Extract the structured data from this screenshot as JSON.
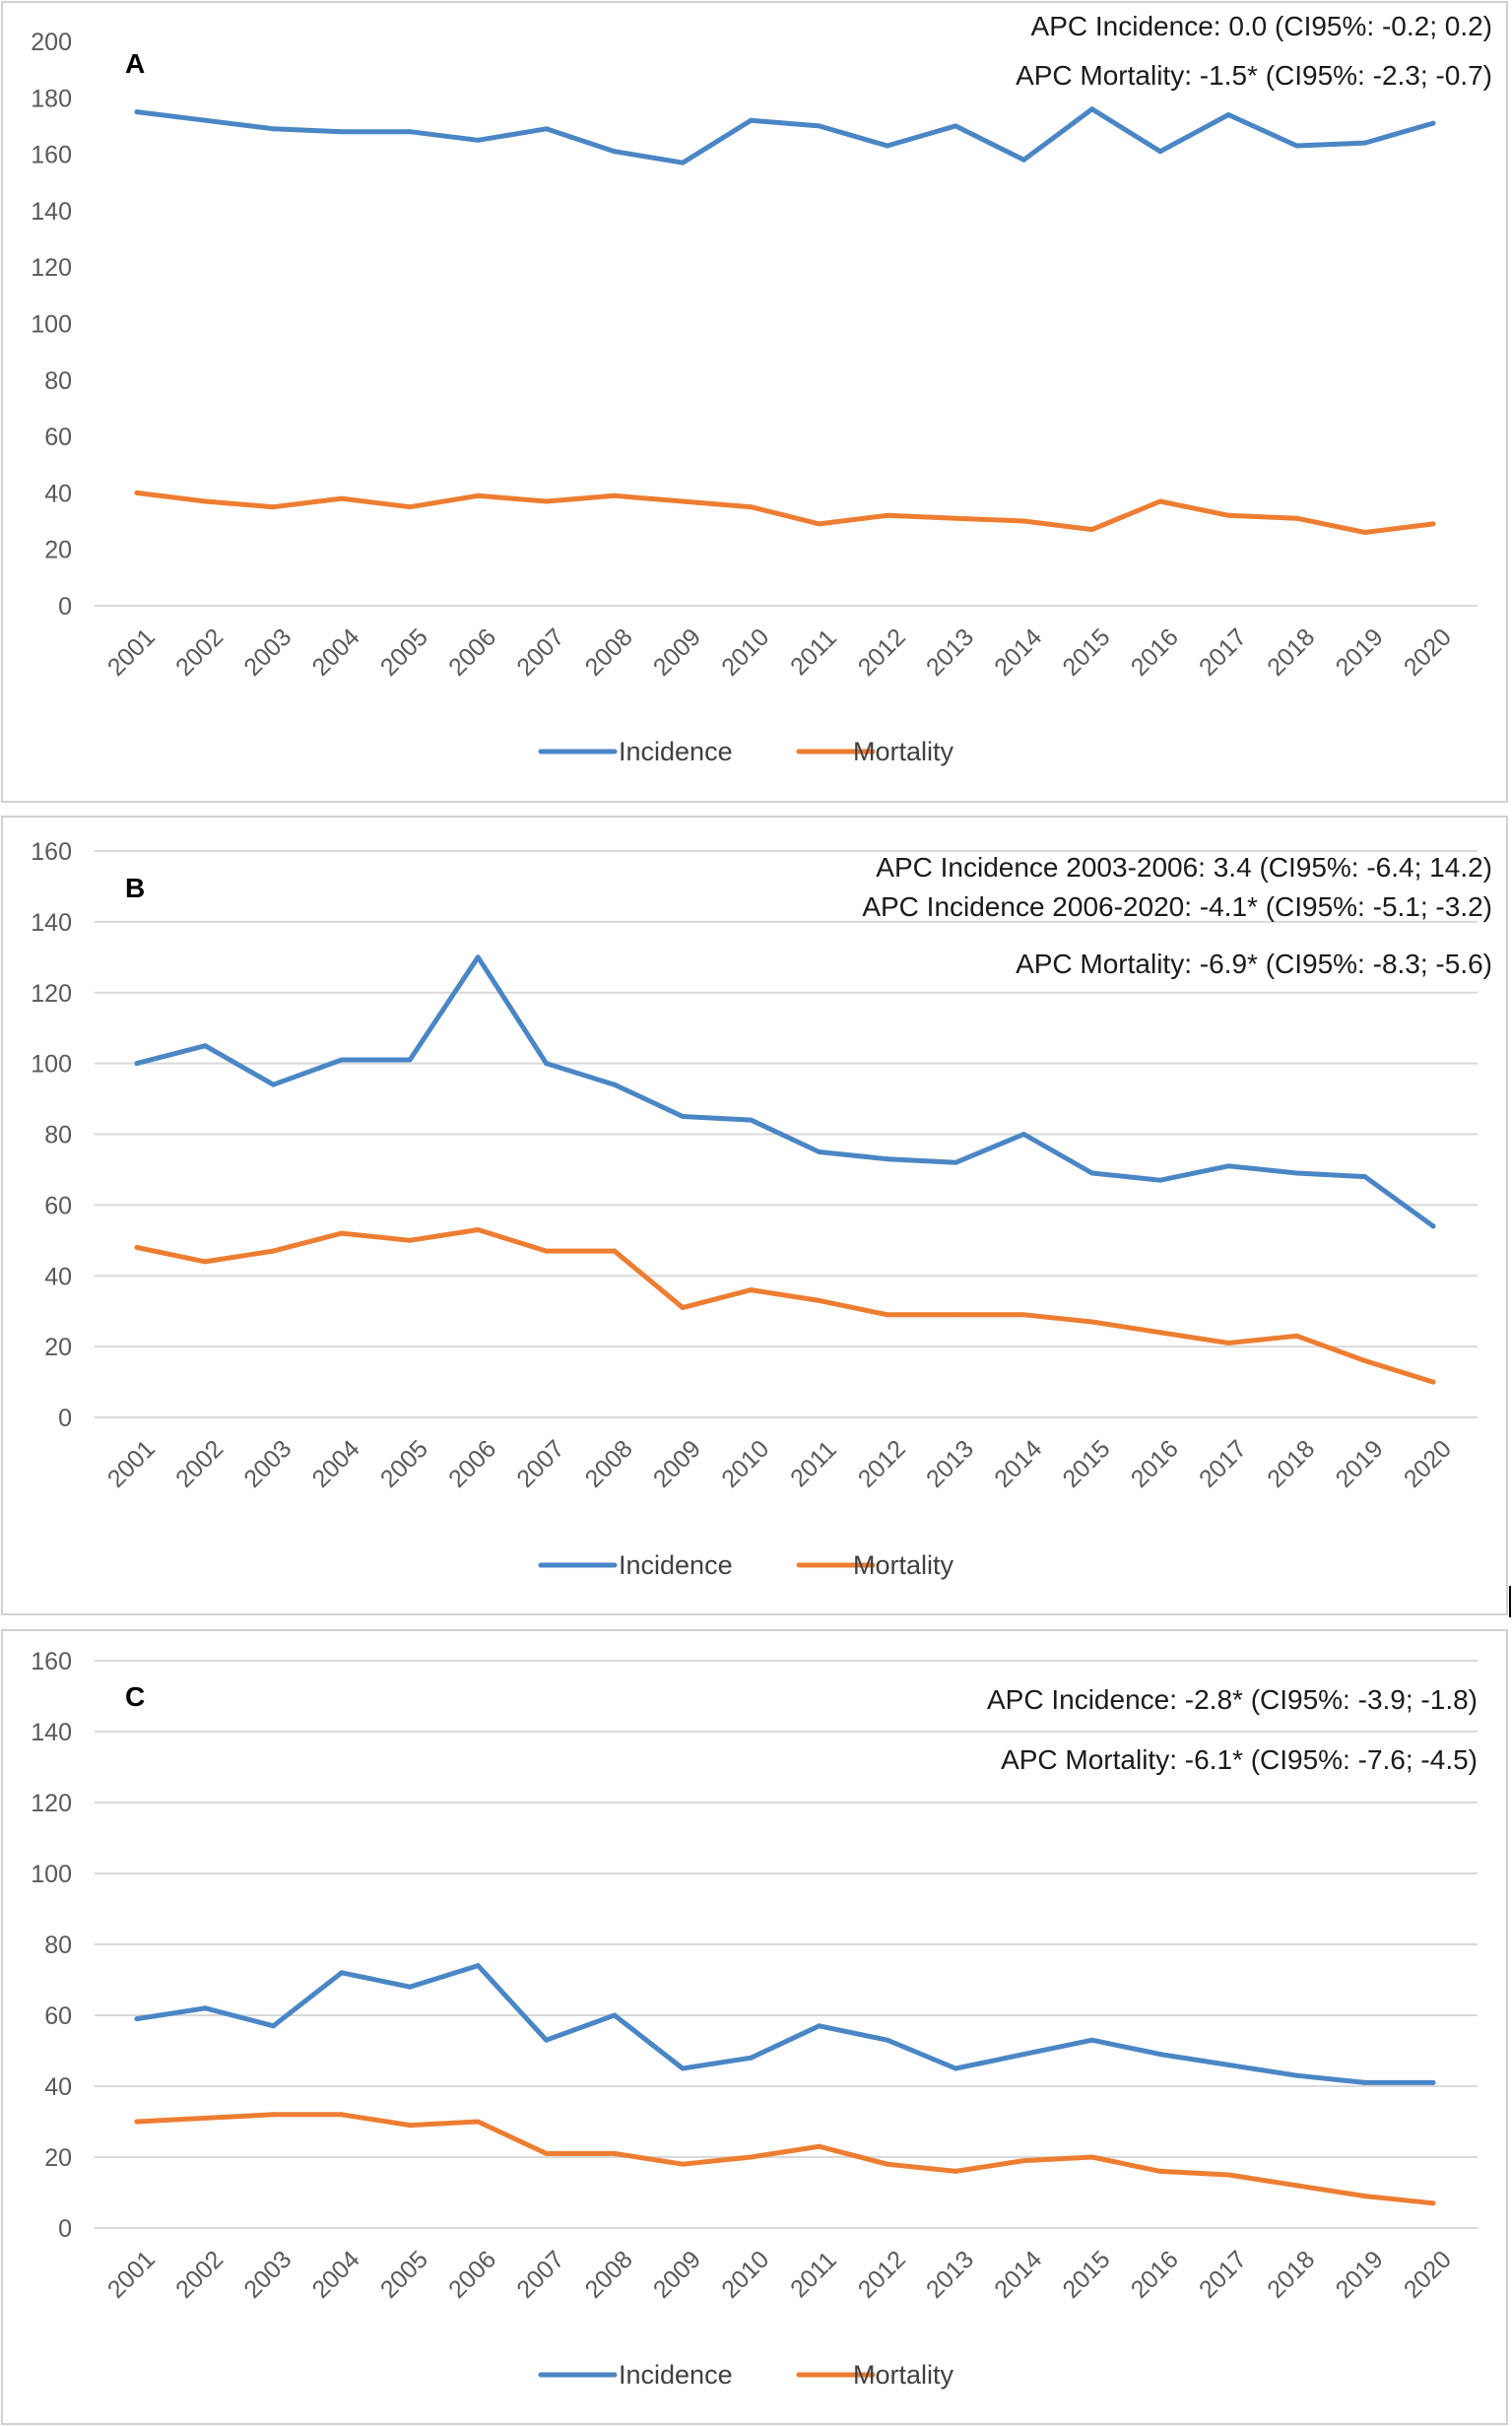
{
  "chart_data": [
    {
      "type": "line",
      "panel_label": "A",
      "categories": [
        "2001",
        "2002",
        "2003",
        "2004",
        "2005",
        "2006",
        "2007",
        "2008",
        "2009",
        "2010",
        "2011",
        "2012",
        "2013",
        "2014",
        "2015",
        "2016",
        "2017",
        "2018",
        "2019",
        "2020"
      ],
      "ylim": [
        0,
        200
      ],
      "yticks": [
        0,
        20,
        40,
        60,
        80,
        100,
        120,
        140,
        160,
        180,
        200
      ],
      "grid": false,
      "series": [
        {
          "name": "Incidence",
          "color": "#4a86c5",
          "values": [
            175,
            172,
            169,
            168,
            168,
            165,
            169,
            161,
            157,
            172,
            170,
            163,
            170,
            158,
            176,
            161,
            174,
            163,
            164,
            171
          ]
        },
        {
          "name": "Mortality",
          "color": "#ed7d31",
          "values": [
            40,
            37,
            35,
            38,
            35,
            39,
            37,
            39,
            37,
            35,
            29,
            32,
            31,
            30,
            27,
            37,
            32,
            31,
            26,
            29
          ]
        }
      ],
      "annotations": [
        "APC Incidence: 0.0 (CI95%: -0.2; 0.2)",
        "APC Mortality: -1.5* (CI95%: -2.3; -0.7)"
      ],
      "legend_position": "bottom"
    },
    {
      "type": "line",
      "panel_label": "B",
      "categories": [
        "2001",
        "2002",
        "2003",
        "2004",
        "2005",
        "2006",
        "2007",
        "2008",
        "2009",
        "2010",
        "2011",
        "2012",
        "2013",
        "2014",
        "2015",
        "2016",
        "2017",
        "2018",
        "2019",
        "2020"
      ],
      "ylim": [
        0,
        160
      ],
      "yticks": [
        0,
        20,
        40,
        60,
        80,
        100,
        120,
        140,
        160
      ],
      "grid": true,
      "series": [
        {
          "name": "Incidence",
          "color": "#4a86c5",
          "values": [
            100,
            105,
            94,
            101,
            101,
            130,
            100,
            94,
            85,
            84,
            75,
            73,
            72,
            80,
            69,
            67,
            71,
            69,
            68,
            54
          ]
        },
        {
          "name": "Mortality",
          "color": "#ed7d31",
          "values": [
            48,
            44,
            47,
            52,
            50,
            53,
            47,
            47,
            31,
            36,
            33,
            29,
            29,
            29,
            27,
            24,
            21,
            23,
            16,
            10
          ]
        }
      ],
      "annotations": [
        "APC Incidence 2003-2006: 3.4 (CI95%: -6.4; 14.2)",
        "APC Incidence 2006-2020: -4.1* (CI95%: -5.1; -3.2)",
        "APC Mortality: -6.9* (CI95%: -8.3; -5.6)"
      ],
      "legend_position": "bottom"
    },
    {
      "type": "line",
      "panel_label": "C",
      "categories": [
        "2001",
        "2002",
        "2003",
        "2004",
        "2005",
        "2006",
        "2007",
        "2008",
        "2009",
        "2010",
        "2011",
        "2012",
        "2013",
        "2014",
        "2015",
        "2016",
        "2017",
        "2018",
        "2019",
        "2020"
      ],
      "ylim": [
        0,
        160
      ],
      "yticks": [
        0,
        20,
        40,
        60,
        80,
        100,
        120,
        140,
        160
      ],
      "grid": true,
      "series": [
        {
          "name": "Incidence",
          "color": "#4a86c5",
          "values": [
            59,
            62,
            57,
            72,
            68,
            74,
            53,
            60,
            45,
            48,
            57,
            53,
            45,
            49,
            53,
            49,
            46,
            43,
            41,
            41
          ]
        },
        {
          "name": "Mortality",
          "color": "#ed7d31",
          "values": [
            30,
            31,
            32,
            32,
            29,
            30,
            21,
            21,
            18,
            20,
            23,
            18,
            16,
            19,
            20,
            16,
            15,
            12,
            9,
            7
          ]
        }
      ],
      "annotations": [
        "APC Incidence: -2.8* (CI95%: -3.9; -1.8)",
        "APC Mortality: -6.1* (CI95%: -7.6; -4.5)"
      ],
      "legend_position": "bottom"
    }
  ]
}
